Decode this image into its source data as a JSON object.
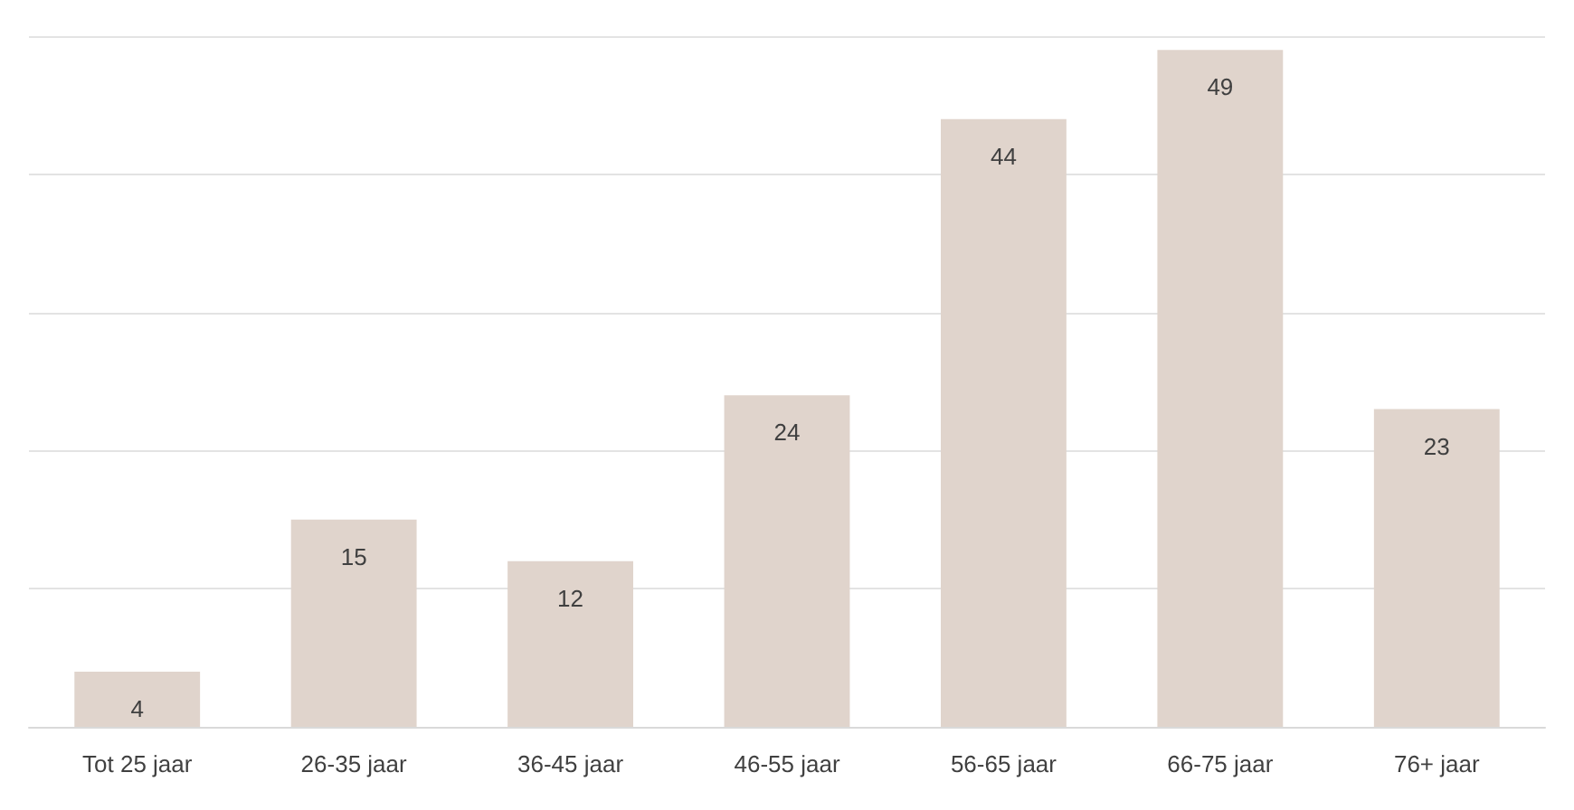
{
  "chart_data": {
    "type": "bar",
    "categories": [
      "Tot 25 jaar",
      "26-35 jaar",
      "36-45 jaar",
      "46-55 jaar",
      "56-65 jaar",
      "66-75 jaar",
      "76+ jaar"
    ],
    "values": [
      4,
      15,
      12,
      24,
      44,
      49,
      23
    ],
    "color": "#e0d4cc",
    "data_labels": true,
    "grid": "y",
    "tick_labels": "x",
    "ylim": [
      0,
      50
    ],
    "yticks": [
      {
        "value": 0,
        "label": null
      },
      {
        "value": 10,
        "label": null
      },
      {
        "value": 20,
        "label": null
      },
      {
        "value": 30,
        "label": null
      },
      {
        "value": 40,
        "label": null
      },
      {
        "value": 50,
        "label": null
      }
    ]
  }
}
